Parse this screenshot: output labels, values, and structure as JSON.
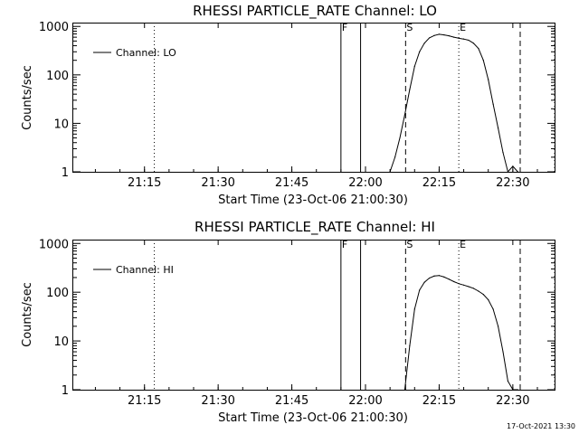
{
  "footer": {
    "date_stamp": "17-Oct-2021 13:30"
  },
  "chart_data": [
    {
      "type": "line",
      "title": "RHESSI PARTICLE_RATE Channel: LO",
      "xlabel": "Start Time (23-Oct-06 21:00:30)",
      "ylabel": "Counts/sec",
      "y_scale": "log",
      "ylim": [
        1,
        1200
      ],
      "xlim": [
        "21:00:30",
        "22:38:30"
      ],
      "x_ticks": [
        "21:15",
        "21:30",
        "21:45",
        "22:00",
        "22:15",
        "22:30"
      ],
      "y_ticks": [
        "1",
        "10",
        "100",
        "1000"
      ],
      "legend": {
        "position": "top-left",
        "entries": [
          "Channel: LO"
        ]
      },
      "series": [
        {
          "name": "Channel: LO",
          "x": [
            "22:05:00",
            "22:06:00",
            "22:07:00",
            "22:08:00",
            "22:09:00",
            "22:10:00",
            "22:11:00",
            "22:12:00",
            "22:13:00",
            "22:14:00",
            "22:15:00",
            "22:16:00",
            "22:17:00",
            "22:18:00",
            "22:19:00",
            "22:20:00",
            "22:21:00",
            "22:22:00",
            "22:23:00",
            "22:24:00",
            "22:25:00",
            "22:26:00",
            "22:27:00",
            "22:28:00",
            "22:29:00",
            "22:30:00",
            "22:31:00"
          ],
          "y": [
            1,
            2,
            5,
            15,
            50,
            150,
            300,
            450,
            580,
            650,
            690,
            670,
            640,
            600,
            570,
            550,
            520,
            450,
            350,
            200,
            80,
            25,
            8,
            2.5,
            1,
            1.3,
            1
          ]
        }
      ],
      "markers": [
        {
          "label": "F",
          "time": "21:55:00",
          "style": "solid"
        },
        {
          "label": "",
          "time": "21:59:00",
          "style": "solid"
        },
        {
          "label": "S",
          "time": "22:08:10",
          "style": "dashed"
        },
        {
          "label": "E",
          "time": "22:19:00",
          "style": "dotted"
        },
        {
          "label": "",
          "time": "22:31:30",
          "style": "dashed"
        },
        {
          "label": "",
          "time": "21:17:00",
          "style": "dotted"
        },
        {
          "label": "",
          "time": "22:38:30",
          "style": "dotted"
        }
      ]
    },
    {
      "type": "line",
      "title": "RHESSI PARTICLE_RATE Channel: HI",
      "xlabel": "Start Time (23-Oct-06 21:00:30)",
      "ylabel": "Counts/sec",
      "y_scale": "log",
      "ylim": [
        1,
        1200
      ],
      "xlim": [
        "21:00:30",
        "22:38:30"
      ],
      "x_ticks": [
        "21:15",
        "21:30",
        "21:45",
        "22:00",
        "22:15",
        "22:30"
      ],
      "y_ticks": [
        "1",
        "10",
        "100",
        "1000"
      ],
      "legend": {
        "position": "top-left",
        "entries": [
          "Channel: HI"
        ]
      },
      "series": [
        {
          "name": "Channel: HI",
          "x": [
            "22:08:00",
            "22:09:00",
            "22:10:00",
            "22:11:00",
            "22:12:00",
            "22:13:00",
            "22:14:00",
            "22:15:00",
            "22:16:00",
            "22:17:00",
            "22:18:00",
            "22:19:00",
            "22:20:00",
            "22:21:00",
            "22:22:00",
            "22:23:00",
            "22:24:00",
            "22:25:00",
            "22:26:00",
            "22:27:00",
            "22:28:00",
            "22:29:00",
            "22:30:00",
            "22:31:00"
          ],
          "y": [
            1,
            8,
            45,
            110,
            160,
            195,
            215,
            220,
            205,
            185,
            165,
            150,
            140,
            130,
            120,
            105,
            90,
            70,
            45,
            20,
            6,
            1.5,
            1,
            1
          ]
        }
      ],
      "markers": [
        {
          "label": "F",
          "time": "21:55:00",
          "style": "solid"
        },
        {
          "label": "",
          "time": "21:59:00",
          "style": "solid"
        },
        {
          "label": "S",
          "time": "22:08:10",
          "style": "dashed"
        },
        {
          "label": "E",
          "time": "22:19:00",
          "style": "dotted"
        },
        {
          "label": "",
          "time": "22:31:30",
          "style": "dashed"
        },
        {
          "label": "",
          "time": "21:17:00",
          "style": "dotted"
        },
        {
          "label": "",
          "time": "22:38:30",
          "style": "dotted"
        }
      ]
    }
  ]
}
